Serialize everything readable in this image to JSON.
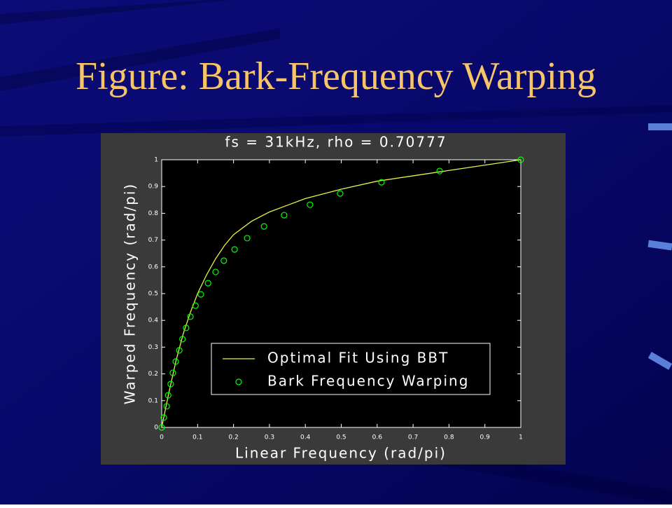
{
  "slide": {
    "title": "Figure: Bark-Frequency Warping"
  },
  "chart_data": {
    "type": "line",
    "title": "fs = 31kHz,  rho = 0.70777",
    "x_label": "Linear Frequency  (rad/pi)",
    "y_label": "Warped Frequency  (rad/pi)",
    "xlim": [
      0,
      1
    ],
    "ylim": [
      0,
      1
    ],
    "xticks": [
      0,
      0.1,
      0.2,
      0.3,
      0.4,
      0.5,
      0.6,
      0.7,
      0.8,
      0.9,
      1
    ],
    "yticks": [
      0,
      0.1,
      0.2,
      0.3,
      0.4,
      0.5,
      0.6,
      0.7,
      0.8,
      0.9,
      1
    ],
    "legend": "lower right",
    "series": [
      {
        "name": "Optimal Fit Using BBT",
        "color": "#e8f04a",
        "type": "line",
        "x": [
          0,
          0.02,
          0.04,
          0.06,
          0.08,
          0.1,
          0.125,
          0.15,
          0.175,
          0.2,
          0.25,
          0.3,
          0.35,
          0.4,
          0.5,
          0.6,
          0.7,
          0.8,
          0.9,
          1
        ],
        "values": [
          0,
          0.13,
          0.25,
          0.35,
          0.43,
          0.5,
          0.57,
          0.63,
          0.68,
          0.72,
          0.77,
          0.805,
          0.83,
          0.855,
          0.89,
          0.92,
          0.94,
          0.96,
          0.98,
          1
        ]
      },
      {
        "name": "Bark Frequency Warping",
        "color": "#00ff00",
        "type": "scatter",
        "x": [
          0,
          0.006,
          0.014,
          0.018,
          0.025,
          0.031,
          0.039,
          0.049,
          0.058,
          0.068,
          0.08,
          0.094,
          0.109,
          0.129,
          0.15,
          0.173,
          0.203,
          0.238,
          0.285,
          0.341,
          0.413,
          0.497,
          0.612,
          0.774,
          1
        ],
        "values": [
          0,
          0.037,
          0.079,
          0.12,
          0.162,
          0.204,
          0.246,
          0.288,
          0.33,
          0.372,
          0.414,
          0.455,
          0.497,
          0.539,
          0.581,
          0.623,
          0.665,
          0.707,
          0.751,
          0.793,
          0.832,
          0.874,
          0.916,
          0.958,
          1
        ]
      }
    ]
  }
}
